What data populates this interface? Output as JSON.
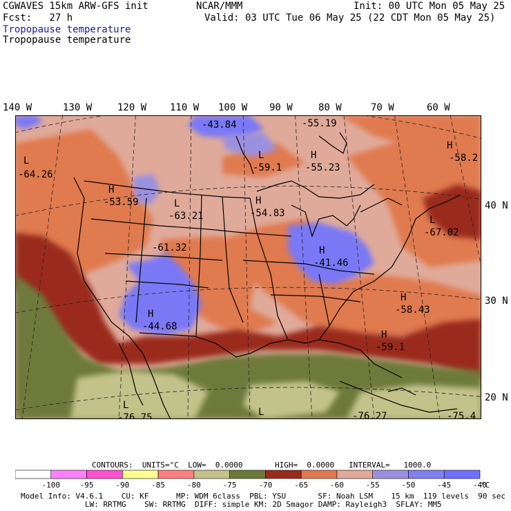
{
  "header": {
    "left_line1": "CGWAVES 15km ARW-GFS init",
    "left_line2": "Fcst:   27 h",
    "center": "NCAR/MMM",
    "init": "Init: 00 UTC Mon 05 May 25",
    "valid": "Valid: 03 UTC Tue 06 May 25 (22 CDT Mon 05 May 25)",
    "field_title": "Tropopause temperature",
    "field_subtitle": "Tropopause temperature"
  },
  "longitude_labels": [
    "140 W",
    "130 W",
    "120 W",
    "110 W",
    "100 W",
    "90 W",
    "80 W",
    "70 W",
    "60 W"
  ],
  "latitude_labels": [
    "40 N",
    "30 N",
    "20 N"
  ],
  "map_labels": [
    {
      "type": "L",
      "value": "-64.26"
    },
    {
      "type": "",
      "value": "-43.84"
    },
    {
      "type": "",
      "value": "-55.19"
    },
    {
      "type": "L",
      "value": "-59.1"
    },
    {
      "type": "H",
      "value": "-55.23"
    },
    {
      "type": "H",
      "value": "-58.2"
    },
    {
      "type": "H",
      "value": "-53.59"
    },
    {
      "type": "L",
      "value": "-63.21"
    },
    {
      "type": "H",
      "value": "-54.83"
    },
    {
      "type": "L",
      "value": "-67.02"
    },
    {
      "type": "",
      "value": "-61.32"
    },
    {
      "type": "H",
      "value": "-41.46"
    },
    {
      "type": "H",
      "value": "-58.43"
    },
    {
      "type": "H",
      "value": "-44.68"
    },
    {
      "type": "H",
      "value": "-59.1"
    },
    {
      "type": "L",
      "value": "-76.75"
    },
    {
      "type": "L",
      "value": ""
    },
    {
      "type": "",
      "value": "-76.27"
    },
    {
      "type": "",
      "value": "-75.4"
    }
  ],
  "contours": {
    "label": "CONTOURS:  UNITS=°C  LOW=  0.0000",
    "high": "HIGH=  0.0000",
    "interval": "INTERVAL=   1000.0"
  },
  "colorbar": {
    "colors": [
      "#ffffff",
      "#ff80ff",
      "#ff50d0",
      "#ffff90",
      "#ff8080",
      "#c2c28a",
      "#6e7a3a",
      "#9a2a1e",
      "#e07a50",
      "#e0aa9a",
      "#9a90e0",
      "#8080f0",
      "#7070ff"
    ],
    "tick_labels": [
      "-100",
      "-95",
      "-90",
      "-85",
      "-80",
      "-75",
      "-70",
      "-65",
      "-60",
      "-55",
      "-50",
      "-45",
      "-40"
    ],
    "unit": "°C"
  },
  "footer": {
    "line1": "Model Info: V4.6.1    CU: KF      MP: WDM 6class  PBL: YSU       SF: Noah LSM    15 km  119 levels  90 sec",
    "line2": "LW: RRTMG    SW: RRTMG  DIFF: simple KM: 2D Smagor DAMP: Rayleigh3  SFLAY: MM5"
  }
}
